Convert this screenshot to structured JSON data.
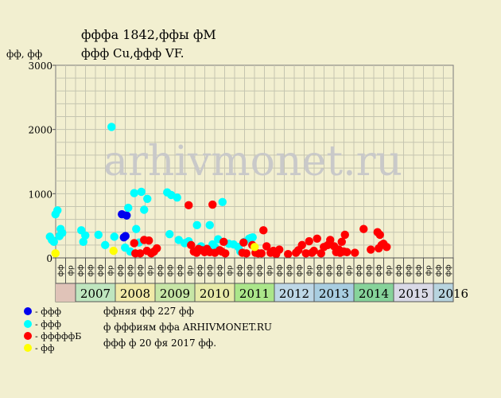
{
  "title_line1": "фффа 1842,ффы фМ",
  "title_line2": "ффф Cu,ффф VF.",
  "ylabel": "фф, фф",
  "watermark": "arhivmonet.ru",
  "legend": [
    {
      "color": "#0000ee",
      "label": "- ффф"
    },
    {
      "color": "#00ffff",
      "label": "- ффф"
    },
    {
      "color": "#ff0000",
      "label": "- фффффБ"
    },
    {
      "color": "#ffff00",
      "label": "- фф"
    }
  ],
  "notes": [
    "ффняя фф 227 фф",
    "ф фффиям ффа ARHIVMONET.RU",
    "ффф ф 20 фя 2017 фф."
  ],
  "chart_data": {
    "type": "scatter",
    "ylim": [
      0,
      3000
    ],
    "yticks": [
      0,
      1000,
      2000,
      3000
    ],
    "xlim": [
      2007.0,
      2017.0
    ],
    "grid": true,
    "quarter_labels": [
      "фф",
      "фр",
      "фф",
      "фф"
    ],
    "years": [
      {
        "label": "2007",
        "color": "#bfe6bf"
      },
      {
        "label": "2008",
        "color": "#f1eaa8"
      },
      {
        "label": "2009",
        "color": "#c7e6a6"
      },
      {
        "label": "2010",
        "color": "#e7eaa9"
      },
      {
        "label": "2011",
        "color": "#abe68a"
      },
      {
        "label": "2012",
        "color": "#bdd7e6"
      },
      {
        "label": "2013",
        "color": "#a8cde0"
      },
      {
        "label": "2014",
        "color": "#86d39a"
      },
      {
        "label": "2015",
        "color": "#d9d9e6"
      },
      {
        "label": "2016",
        "color": "#b8d4df"
      }
    ],
    "series": [
      {
        "name": "- ффф",
        "color": "#0000ee",
        "points": [
          [
            2008.54,
            680
          ],
          [
            2008.66,
            660
          ],
          [
            2008.59,
            320
          ],
          [
            2008.63,
            340
          ]
        ]
      },
      {
        "name": "- ффф",
        "color": "#00ffff",
        "points": [
          [
            2006.73,
            330
          ],
          [
            2006.78,
            280
          ],
          [
            2006.83,
            250
          ],
          [
            2006.87,
            680
          ],
          [
            2006.92,
            740
          ],
          [
            2006.97,
            340
          ],
          [
            2007.0,
            450
          ],
          [
            2007.04,
            390
          ],
          [
            2007.52,
            430
          ],
          [
            2007.57,
            250
          ],
          [
            2007.62,
            350
          ],
          [
            2007.95,
            360
          ],
          [
            2008.12,
            200
          ],
          [
            2008.28,
            2040
          ],
          [
            2008.35,
            330
          ],
          [
            2008.62,
            160
          ],
          [
            2008.7,
            780
          ],
          [
            2008.75,
            100
          ],
          [
            2008.85,
            1010
          ],
          [
            2008.9,
            450
          ],
          [
            2008.97,
            240
          ],
          [
            2009.03,
            1030
          ],
          [
            2009.1,
            750
          ],
          [
            2009.18,
            920
          ],
          [
            2009.68,
            1020
          ],
          [
            2009.74,
            370
          ],
          [
            2009.78,
            980
          ],
          [
            2009.93,
            940
          ],
          [
            2009.97,
            280
          ],
          [
            2010.12,
            230
          ],
          [
            2010.22,
            260
          ],
          [
            2010.43,
            510
          ],
          [
            2010.53,
            180
          ],
          [
            2010.63,
            120
          ],
          [
            2010.75,
            510
          ],
          [
            2010.82,
            210
          ],
          [
            2010.88,
            170
          ],
          [
            2010.96,
            290
          ],
          [
            2011.07,
            870
          ],
          [
            2011.23,
            220
          ],
          [
            2011.35,
            210
          ],
          [
            2011.47,
            170
          ],
          [
            2011.52,
            100
          ],
          [
            2011.62,
            250
          ],
          [
            2011.74,
            300
          ],
          [
            2011.78,
            310
          ],
          [
            2011.83,
            320
          ]
        ]
      },
      {
        "name": "- фффффБ",
        "color": "#ff0000",
        "points": [
          [
            2008.85,
            230
          ],
          [
            2008.88,
            70
          ],
          [
            2009.0,
            70
          ],
          [
            2009.1,
            280
          ],
          [
            2009.17,
            110
          ],
          [
            2009.22,
            270
          ],
          [
            2009.28,
            70
          ],
          [
            2009.35,
            100
          ],
          [
            2009.42,
            150
          ],
          [
            2010.22,
            820
          ],
          [
            2010.28,
            200
          ],
          [
            2010.35,
            100
          ],
          [
            2010.42,
            80
          ],
          [
            2010.47,
            140
          ],
          [
            2010.55,
            120
          ],
          [
            2010.62,
            90
          ],
          [
            2010.68,
            140
          ],
          [
            2010.75,
            90
          ],
          [
            2010.82,
            830
          ],
          [
            2010.88,
            80
          ],
          [
            2011.0,
            120
          ],
          [
            2011.05,
            100
          ],
          [
            2011.1,
            250
          ],
          [
            2011.14,
            70
          ],
          [
            2011.57,
            80
          ],
          [
            2011.6,
            240
          ],
          [
            2011.67,
            70
          ],
          [
            2011.82,
            200
          ],
          [
            2011.9,
            80
          ],
          [
            2011.97,
            70
          ],
          [
            2012.05,
            70
          ],
          [
            2012.1,
            430
          ],
          [
            2012.18,
            180
          ],
          [
            2012.28,
            80
          ],
          [
            2012.35,
            110
          ],
          [
            2012.42,
            60
          ],
          [
            2012.5,
            130
          ],
          [
            2012.72,
            60
          ],
          [
            2012.92,
            80
          ],
          [
            2012.98,
            120
          ],
          [
            2013.07,
            200
          ],
          [
            2013.17,
            70
          ],
          [
            2013.25,
            260
          ],
          [
            2013.32,
            80
          ],
          [
            2013.37,
            110
          ],
          [
            2013.45,
            300
          ],
          [
            2013.55,
            70
          ],
          [
            2013.62,
            170
          ],
          [
            2013.72,
            200
          ],
          [
            2013.78,
            280
          ],
          [
            2013.88,
            180
          ],
          [
            2013.93,
            90
          ],
          [
            2014.0,
            130
          ],
          [
            2014.03,
            80
          ],
          [
            2014.07,
            250
          ],
          [
            2014.12,
            100
          ],
          [
            2014.15,
            360
          ],
          [
            2014.2,
            90
          ],
          [
            2014.4,
            80
          ],
          [
            2014.62,
            450
          ],
          [
            2014.8,
            130
          ],
          [
            2014.97,
            400
          ],
          [
            2015.0,
            150
          ],
          [
            2015.03,
            360
          ],
          [
            2015.07,
            200
          ],
          [
            2015.12,
            220
          ],
          [
            2015.2,
            170
          ]
        ]
      },
      {
        "name": "- фф",
        "color": "#ffff00",
        "points": [
          [
            2006.87,
            70
          ],
          [
            2008.33,
            110
          ],
          [
            2011.88,
            170
          ]
        ]
      }
    ]
  }
}
